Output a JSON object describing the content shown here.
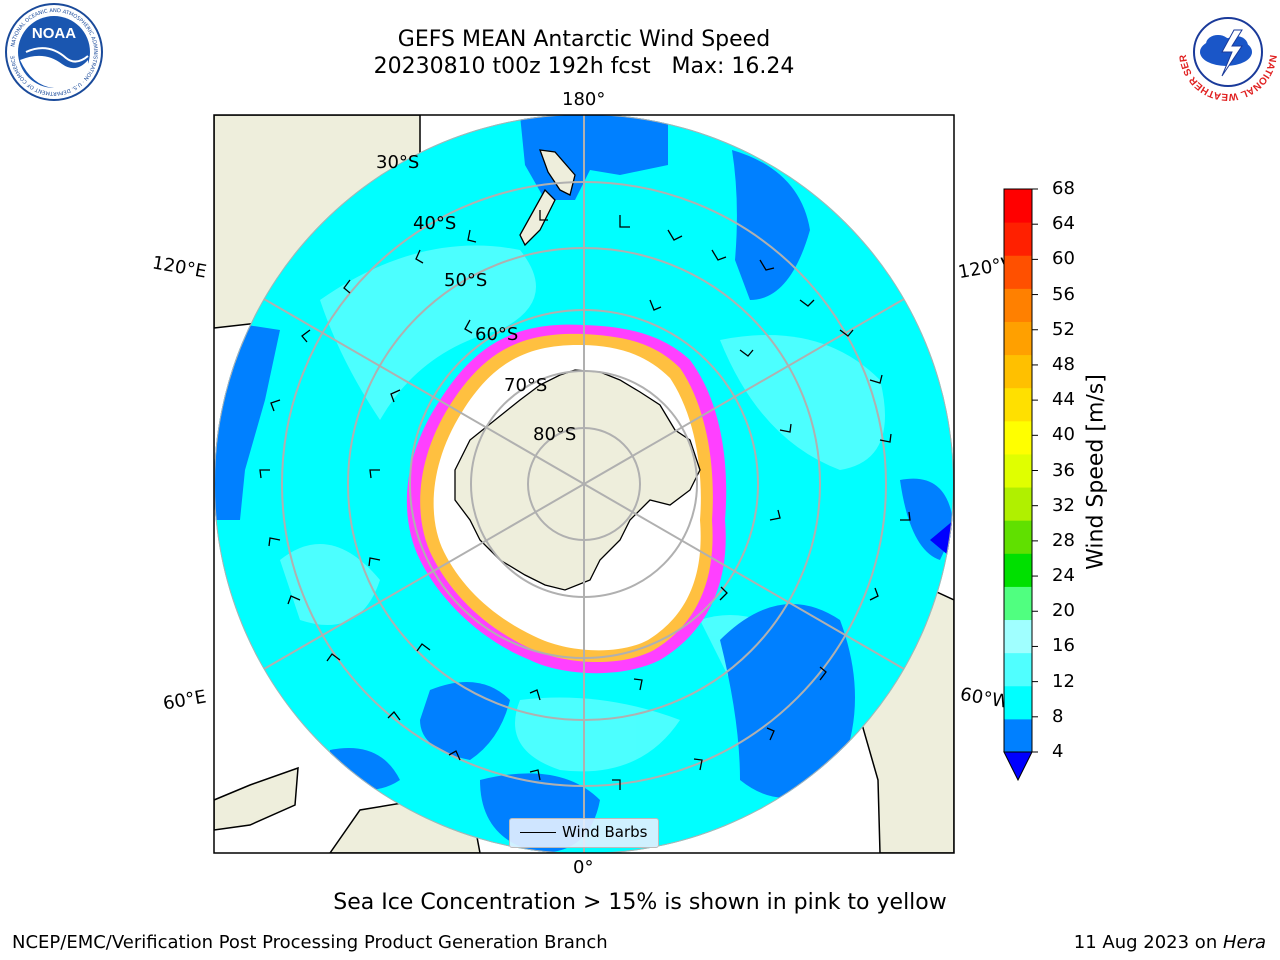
{
  "header": {
    "title_line1": "GEFS MEAN Antarctic Wind Speed",
    "title_line2": "20230810 t00z 192h fcst   Max: 16.24"
  },
  "logos": {
    "noaa_text": "NOAA",
    "noaa_ring": "NATIONAL OCEANIC AND ATMOSPHERIC ADMINISTRATION · U.S. DEPARTMENT OF COMMERCE",
    "nws_ring": "NATIONAL WEATHER SERVICE"
  },
  "map": {
    "projection": "south-polar-stereographic",
    "longitude_labels": {
      "top": "180°",
      "bottom": "0°",
      "left_upper": "120°E",
      "left_lower": "60°E",
      "right_upper": "120°W",
      "right_lower": "60°W"
    },
    "latitude_labels": [
      "30°S",
      "40°S",
      "50°S",
      "60°S",
      "70°S",
      "80°S"
    ],
    "legend_label": "Wind Barbs",
    "colors": {
      "land": "#eeeedc",
      "ocean_light": "#00ffff",
      "ocean_mid": "#50ffff",
      "ocean_dark": "#0080ff",
      "sea_ice": "#ff40ff",
      "sea_ice_inner": "#ffc040",
      "grid": "#b0b0b0"
    }
  },
  "colorbar": {
    "title": "Wind Speed [m/s]",
    "ticks": [
      "4",
      "8",
      "12",
      "16",
      "20",
      "24",
      "28",
      "32",
      "36",
      "40",
      "44",
      "48",
      "52",
      "56",
      "60",
      "64",
      "68"
    ],
    "colors": [
      "#0080ff",
      "#00ffff",
      "#50ffff",
      "#a0ffff",
      "#50ff80",
      "#00e000",
      "#60e000",
      "#b0f000",
      "#e0ff00",
      "#ffff00",
      "#ffe000",
      "#ffc000",
      "#ffa000",
      "#ff8000",
      "#ff5000",
      "#ff2000",
      "#ff0000"
    ],
    "extend_color": "#0000ff"
  },
  "caption": "Sea Ice Concentration > 15% is shown in pink to yellow",
  "footer": {
    "left": "NCEP/EMC/Verification Post Processing Product Generation Branch",
    "right_prefix": "11 Aug 2023 on ",
    "right_host": "Hera"
  }
}
